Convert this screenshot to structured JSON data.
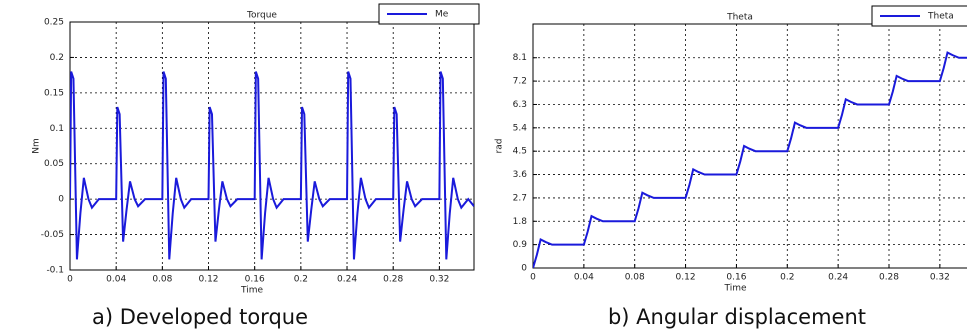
{
  "chart_data": [
    {
      "type": "line",
      "title": "Torque",
      "y_label": "Nm",
      "x_label": "Time",
      "caption": "a)  Developed torque",
      "xlim": [
        0,
        0.35
      ],
      "ylim": [
        -0.1,
        0.25
      ],
      "xticks": [
        0,
        0.04,
        0.08,
        0.12,
        0.16,
        0.2,
        0.24,
        0.28,
        0.32
      ],
      "yticks": [
        -0.1,
        -0.05,
        0,
        0.05,
        0.1,
        0.15,
        0.2,
        0.25
      ],
      "grid": true,
      "legend": "top-right",
      "x": [
        0,
        0.001,
        0.003,
        0.006,
        0.009,
        0.012,
        0.016,
        0.019,
        0.025,
        0.04,
        0.041,
        0.043,
        0.046,
        0.049,
        0.052,
        0.056,
        0.059,
        0.065,
        0.08,
        0.081,
        0.083,
        0.086,
        0.089,
        0.092,
        0.096,
        0.099,
        0.105,
        0.12,
        0.121,
        0.123,
        0.126,
        0.129,
        0.132,
        0.136,
        0.139,
        0.145,
        0.16,
        0.161,
        0.163,
        0.166,
        0.169,
        0.172,
        0.176,
        0.179,
        0.185,
        0.2,
        0.201,
        0.203,
        0.206,
        0.209,
        0.212,
        0.216,
        0.219,
        0.225,
        0.24,
        0.241,
        0.243,
        0.246,
        0.249,
        0.252,
        0.256,
        0.259,
        0.265,
        0.28,
        0.281,
        0.283,
        0.286,
        0.289,
        0.292,
        0.296,
        0.299,
        0.305,
        0.32,
        0.321,
        0.323,
        0.326,
        0.329,
        0.332,
        0.336,
        0.339,
        0.345,
        0.35
      ],
      "series": [
        {
          "name": "Me",
          "color": "#1a1adb",
          "values": [
            0,
            0.18,
            0.17,
            -0.085,
            -0.02,
            0.03,
            0,
            -0.012,
            0,
            0,
            0.13,
            0.12,
            -0.06,
            -0.015,
            0.025,
            0,
            -0.01,
            0,
            0,
            0.18,
            0.17,
            -0.085,
            -0.02,
            0.03,
            0,
            -0.012,
            0,
            0,
            0.13,
            0.12,
            -0.06,
            -0.015,
            0.025,
            0,
            -0.01,
            0,
            0,
            0.18,
            0.17,
            -0.085,
            -0.02,
            0.03,
            0,
            -0.012,
            0,
            0,
            0.13,
            0.12,
            -0.06,
            -0.015,
            0.025,
            0,
            -0.01,
            0,
            0,
            0.18,
            0.17,
            -0.085,
            -0.02,
            0.03,
            0,
            -0.012,
            0,
            0,
            0.13,
            0.12,
            -0.06,
            -0.015,
            0.025,
            0,
            -0.01,
            0,
            0,
            0.18,
            0.17,
            -0.085,
            -0.02,
            0.03,
            0,
            -0.012,
            0,
            -0.01
          ]
        }
      ]
    },
    {
      "type": "line",
      "title": "Theta",
      "y_label": "rad",
      "x_label": "Time",
      "caption": "b)  Angular displacement",
      "xlim": [
        0,
        0.35
      ],
      "ylim": [
        0,
        9.4
      ],
      "xticks": [
        0,
        0.04,
        0.08,
        0.12,
        0.16,
        0.2,
        0.24,
        0.28,
        0.32
      ],
      "yticks": [
        0,
        0.9,
        1.8,
        2.7,
        3.6,
        4.5,
        5.4,
        6.3,
        7.2,
        8.1
      ],
      "grid": true,
      "legend": "top-right",
      "x": [
        0,
        0.003,
        0.006,
        0.01,
        0.015,
        0.04,
        0.043,
        0.046,
        0.05,
        0.055,
        0.08,
        0.083,
        0.086,
        0.09,
        0.095,
        0.12,
        0.123,
        0.126,
        0.13,
        0.135,
        0.16,
        0.163,
        0.166,
        0.17,
        0.175,
        0.2,
        0.203,
        0.206,
        0.21,
        0.215,
        0.24,
        0.243,
        0.246,
        0.25,
        0.255,
        0.28,
        0.283,
        0.286,
        0.29,
        0.295,
        0.32,
        0.323,
        0.326,
        0.33,
        0.335,
        0.35
      ],
      "series": [
        {
          "name": "Theta",
          "color": "#1a1adb",
          "values": [
            0,
            0.5,
            1.1,
            1.0,
            0.9,
            0.9,
            1.4,
            2.0,
            1.9,
            1.8,
            1.8,
            2.3,
            2.9,
            2.8,
            2.7,
            2.7,
            3.2,
            3.8,
            3.7,
            3.6,
            3.6,
            4.1,
            4.7,
            4.6,
            4.5,
            4.5,
            5.0,
            5.6,
            5.5,
            5.4,
            5.4,
            5.9,
            6.5,
            6.4,
            6.3,
            6.3,
            6.8,
            7.4,
            7.3,
            7.2,
            7.2,
            7.7,
            8.3,
            8.2,
            8.1,
            8.1
          ]
        }
      ]
    }
  ]
}
